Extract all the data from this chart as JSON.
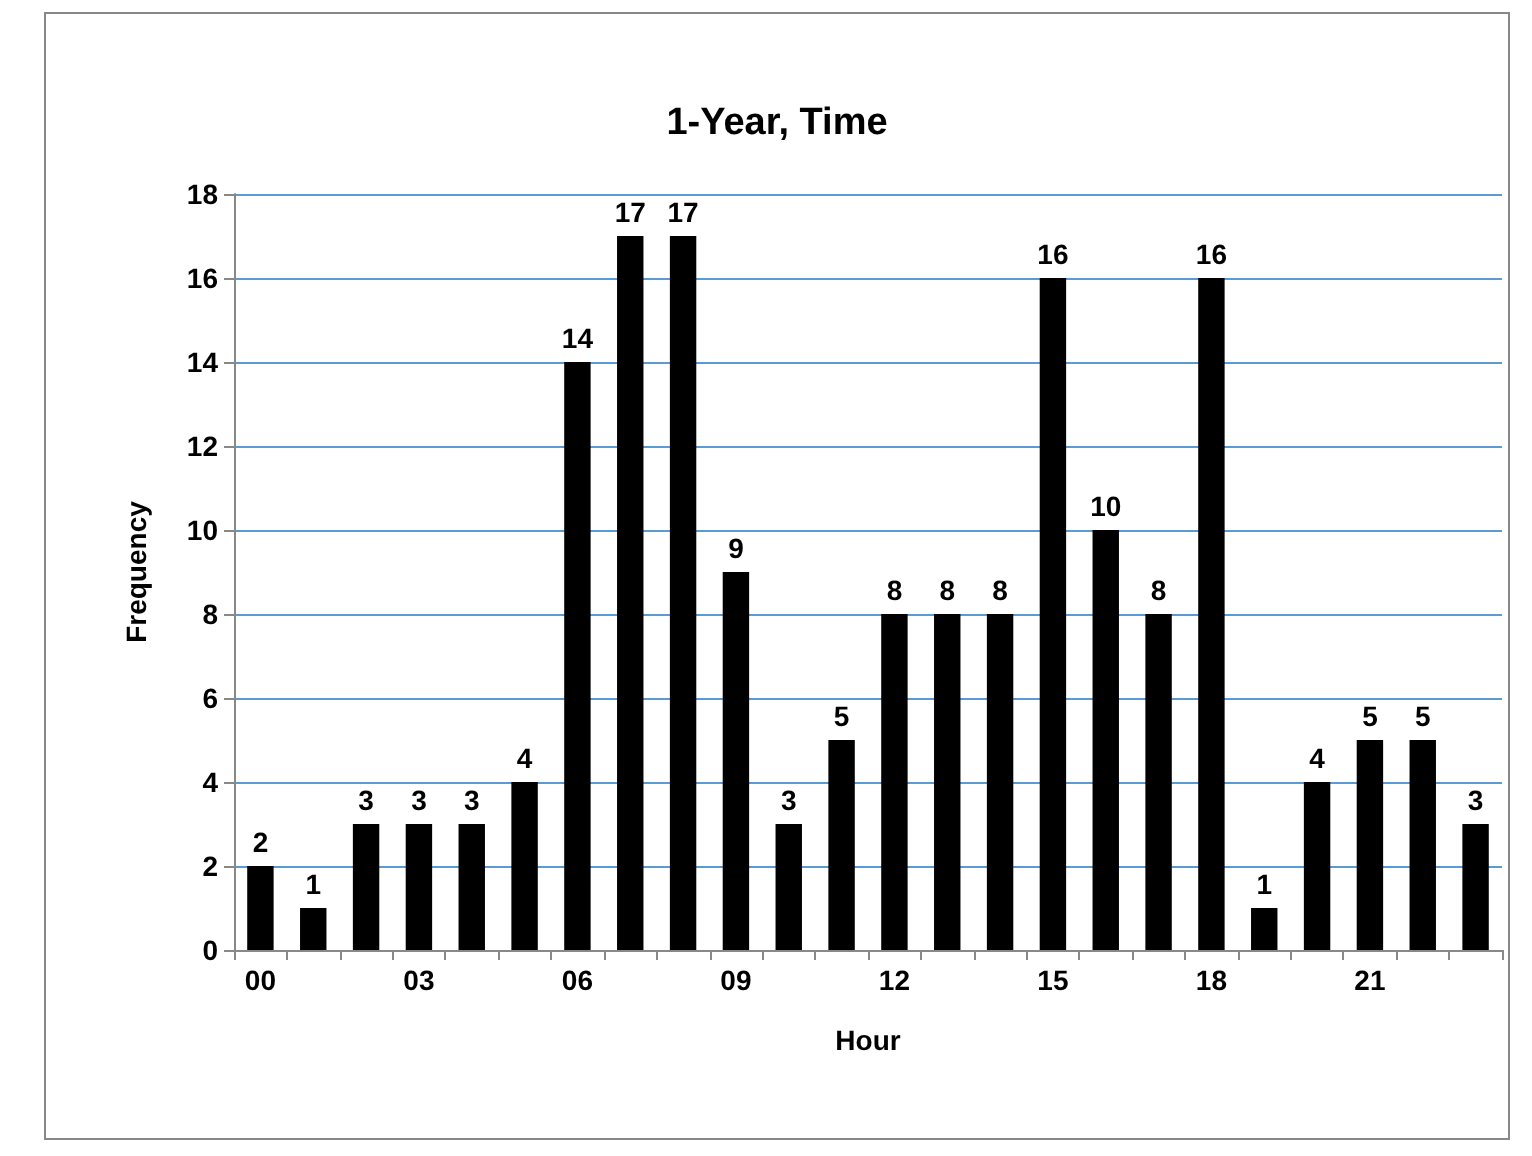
{
  "chart_data": {
    "type": "bar",
    "title": "1-Year, Time",
    "xlabel": "Hour",
    "ylabel": "Frequency",
    "categories": [
      "00",
      null,
      null,
      "03",
      null,
      null,
      "06",
      null,
      null,
      "09",
      null,
      null,
      "12",
      null,
      null,
      "15",
      null,
      null,
      "18",
      null,
      null,
      "21",
      null,
      null
    ],
    "values": [
      2,
      1,
      3,
      3,
      3,
      4,
      14,
      17,
      17,
      9,
      3,
      5,
      8,
      8,
      8,
      16,
      10,
      8,
      16,
      1,
      4,
      5,
      5,
      3
    ],
    "color": "#000000",
    "ylim": [
      0,
      18
    ],
    "yticks": [
      0,
      2,
      4,
      6,
      8,
      10,
      12,
      14,
      16,
      18
    ],
    "grid": "y",
    "data_labels": true
  }
}
